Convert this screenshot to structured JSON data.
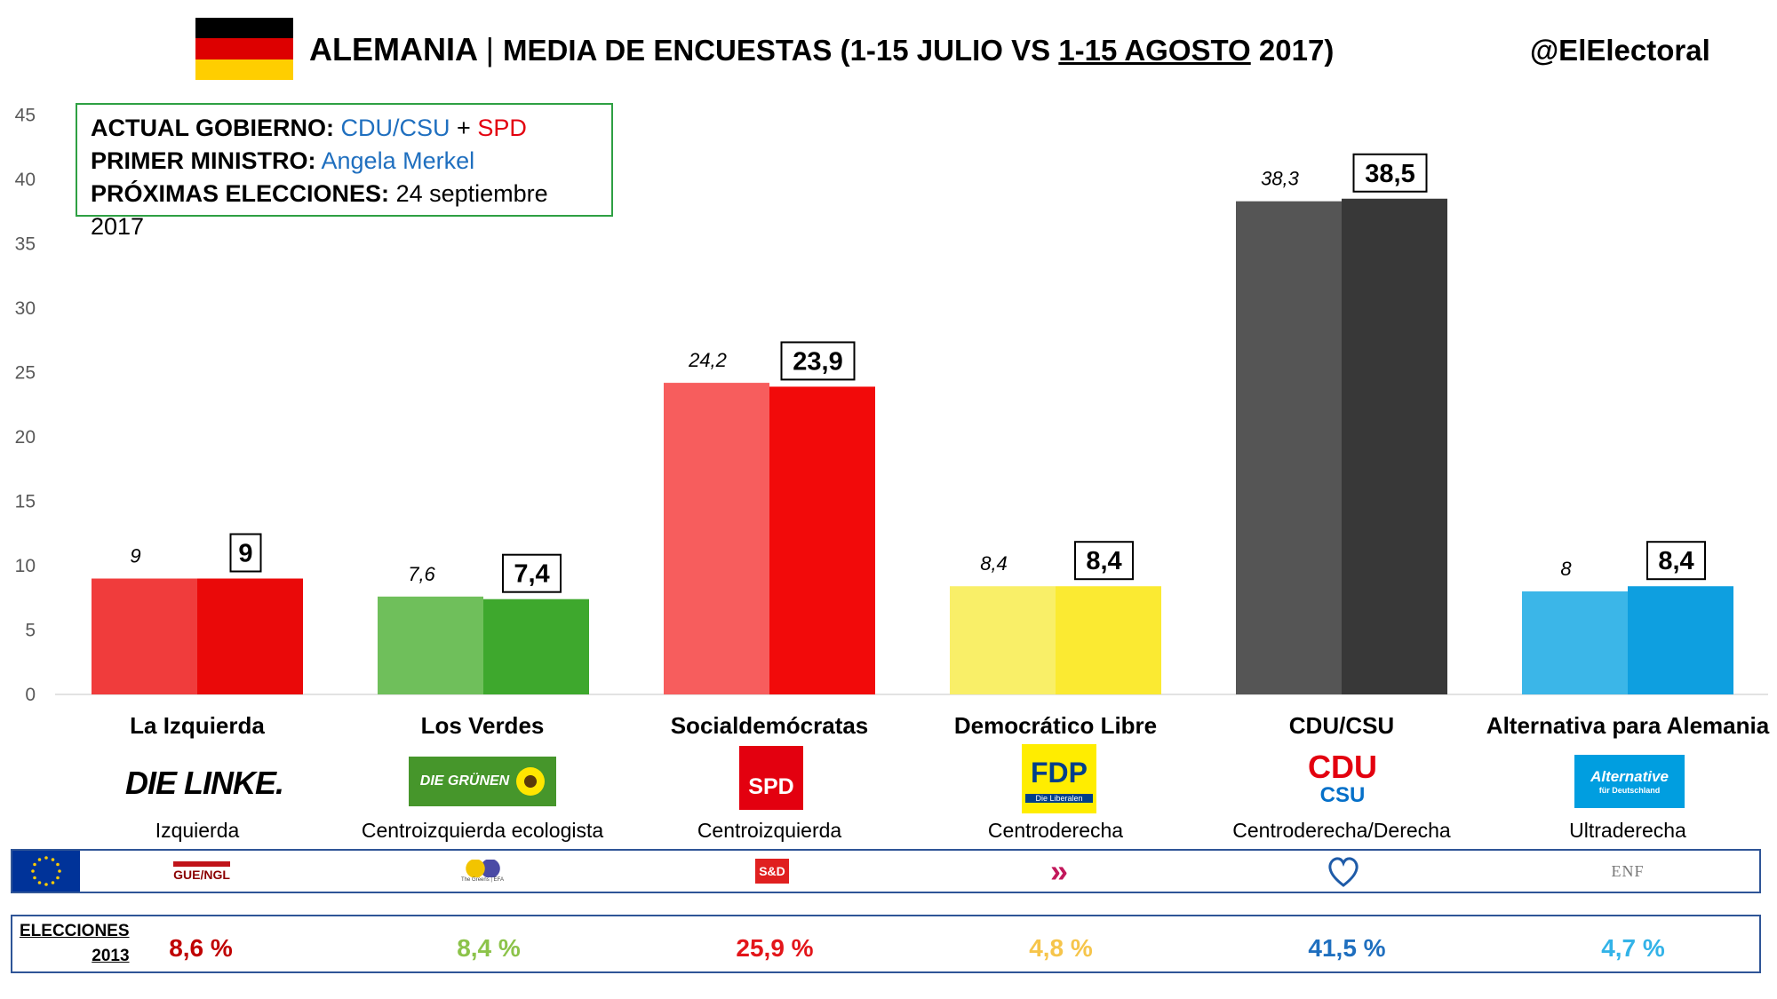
{
  "header": {
    "country": "ALEMANIA",
    "separator": "|",
    "subtitle_prefix": "MEDIA DE ENCUESTAS (1-15 JULIO VS ",
    "subtitle_underlined": "1-15 AGOSTO",
    "subtitle_suffix": " 2017)",
    "handle": "@ElElectoral",
    "flag_colors": [
      "#000000",
      "#dd0000",
      "#ffce00"
    ]
  },
  "info": {
    "gov_label": "ACTUAL GOBIERNO:",
    "gov_party1": "CDU/CSU",
    "gov_plus": " + ",
    "gov_party2": "SPD",
    "pm_label": "PRIMER MINISTRO:",
    "pm_name": "Angela Merkel",
    "elec_label": "PRÓXIMAS ELECCIONES:",
    "elec_date": "24 septiembre 2017"
  },
  "chart_data": {
    "type": "bar",
    "categories": [
      "La Izquierda",
      "Los Verdes",
      "Socialdemócratas",
      "Democrático Libre",
      "CDU/CSU",
      "Alternativa para Alemania"
    ],
    "series": [
      {
        "values": [
          9,
          7.6,
          24.2,
          8.4,
          38.3,
          8
        ],
        "labels": [
          "9",
          "7,6",
          "24,2",
          "8,4",
          "38,3",
          "8"
        ],
        "colors": [
          "#f03c3c",
          "#6fbf5b",
          "#f75d5d",
          "#f9ef68",
          "#555555",
          "#3bb6e8"
        ]
      },
      {
        "values": [
          9,
          7.4,
          23.9,
          8.4,
          38.5,
          8.4
        ],
        "labels": [
          "9",
          "7,4",
          "23,9",
          "8,4",
          "38,5",
          "8,4"
        ],
        "colors": [
          "#ea0909",
          "#3ea82d",
          "#f20a0a",
          "#fbea32",
          "#383838",
          "#0e9fe0"
        ]
      }
    ],
    "yticks": [
      "0",
      "5",
      "10",
      "15",
      "20",
      "25",
      "30",
      "35",
      "40",
      "45"
    ],
    "ylim": [
      0,
      45
    ],
    "grid": false
  },
  "parties": [
    {
      "name": "La Izquierda",
      "ideology": "Izquierda",
      "logo_text": "DIE LINKE.",
      "eu_group": "GUE/NGL",
      "elections_2013": "8,6 %",
      "el_color": "#c00000"
    },
    {
      "name": "Los Verdes",
      "ideology": "Centroizquierda ecologista",
      "logo_text": "DIE GRÜNEN",
      "eu_group": "The Greens | EFA",
      "elections_2013": "8,4 %",
      "el_color": "#8cc34a"
    },
    {
      "name": "Socialdemócratas",
      "ideology": "Centroizquierda",
      "logo_text": "SPD",
      "eu_group": "S&D",
      "elections_2013": "25,9 %",
      "el_color": "#e3151a"
    },
    {
      "name": "Democrático Libre",
      "ideology": "Centroderecha",
      "logo_text": "FDP",
      "logo_subtext": "Die Liberalen",
      "eu_group": "»",
      "elections_2013": "4,8 %",
      "el_color": "#f6c54b"
    },
    {
      "name": "CDU/CSU",
      "ideology": "Centroderecha/Derecha",
      "logo_text": "CDU",
      "logo_text2": "CSU",
      "eu_group": "EPP",
      "elections_2013": "41,5 %",
      "el_color": "#1f6fbf"
    },
    {
      "name": "Alternativa para Alemania",
      "ideology": "Ultraderecha",
      "logo_text": "Alternative",
      "logo_subtext": "für Deutschland",
      "eu_group": "ENF",
      "elections_2013": "4,7 %",
      "el_color": "#33b3e8"
    }
  ],
  "elections": {
    "label_line1": "ELECCIONES",
    "label_line2": "2013"
  }
}
